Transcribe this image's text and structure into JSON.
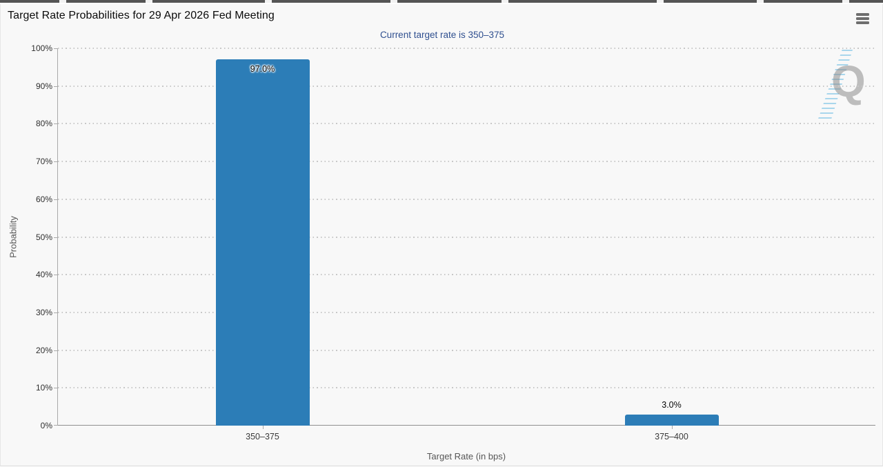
{
  "header": {
    "title": "Target Rate Probabilities for 29 Apr 2026 Fed Meeting",
    "menu_icon": "hamburger-menu"
  },
  "chart_data": {
    "type": "bar",
    "title": "Target Rate Probabilities for 29 Apr 2026 Fed Meeting",
    "subtitle": "Current target rate is 350–375",
    "categories": [
      "350–375",
      "375–400"
    ],
    "values": [
      97.0,
      3.0
    ],
    "data_labels": [
      "97.0%",
      "3.0%"
    ],
    "xlabel": "Target Rate (in bps)",
    "ylabel": "Probability",
    "ylim": [
      0,
      100
    ],
    "ytick_step": 10,
    "ytick_labels": [
      "0%",
      "10%",
      "20%",
      "30%",
      "40%",
      "50%",
      "60%",
      "70%",
      "80%",
      "90%",
      "100%"
    ],
    "grid": "horizontal-dotted",
    "legend": "none",
    "watermark_letter": "Q"
  },
  "colors": {
    "bar": "#2c7db7",
    "subtitle_text": "#2f4f8f",
    "watermark_stripes": "#7dc3e6",
    "widget_background": "#f8f8f8"
  }
}
